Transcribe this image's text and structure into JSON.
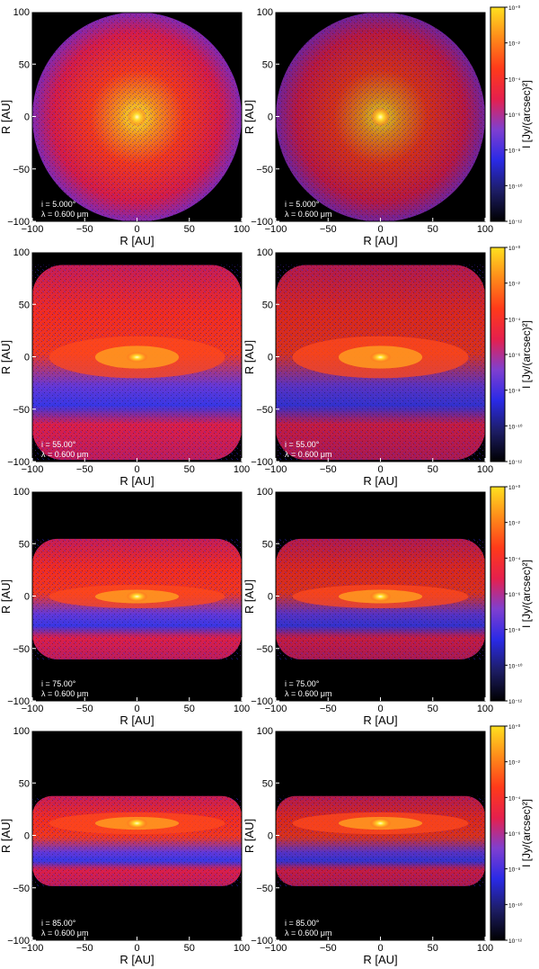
{
  "figure": {
    "rows": [
      {
        "panels": [
          {
            "inc": "5.000",
            "wl": "0.600",
            "shape": "face",
            "clip": false
          },
          {
            "inc": "5.000",
            "wl": "0.600",
            "shape": "face",
            "clip": false
          }
        ]
      },
      {
        "panels": [
          {
            "inc": "55.00",
            "wl": "0.600",
            "shape": "mid",
            "clip": true
          },
          {
            "inc": "55.00",
            "wl": "0.600",
            "shape": "mid",
            "clip": true
          }
        ]
      },
      {
        "panels": [
          {
            "inc": "75.00",
            "wl": "0.600",
            "shape": "steep",
            "clip": true
          },
          {
            "inc": "75.00",
            "wl": "0.600",
            "shape": "steep",
            "clip": true
          }
        ]
      },
      {
        "panels": [
          {
            "inc": "85.00",
            "wl": "0.600",
            "shape": "edge",
            "clip": true
          },
          {
            "inc": "85.00",
            "wl": "0.600",
            "shape": "edge",
            "clip": true
          }
        ]
      }
    ],
    "axes": {
      "xlabel": "R [AU]",
      "ylabel": "R [AU]",
      "ticks": [
        "−100",
        "−50",
        "0",
        "50",
        "100"
      ],
      "range": [
        -100,
        100
      ]
    },
    "colorbar": {
      "label": "I [Jy/(arcsec)²]",
      "ticks": [
        "10⁺⁰",
        "10⁻²",
        "10⁻⁴",
        "10⁻⁶",
        "10⁻⁸",
        "10⁻¹⁰",
        "10⁻¹²"
      ],
      "scale": "log",
      "range": [
        -12,
        0
      ],
      "colors": [
        "#000000",
        "#1d1d66",
        "#2a2ae6",
        "#7f3fd0",
        "#e5204d",
        "#ff3a1a",
        "#ff8a1a",
        "#ffe020"
      ]
    },
    "annotation": {
      "inc_prefix": "i = ",
      "deg": "°",
      "wl_prefix": "λ = ",
      "wl_unit": " μm"
    }
  }
}
